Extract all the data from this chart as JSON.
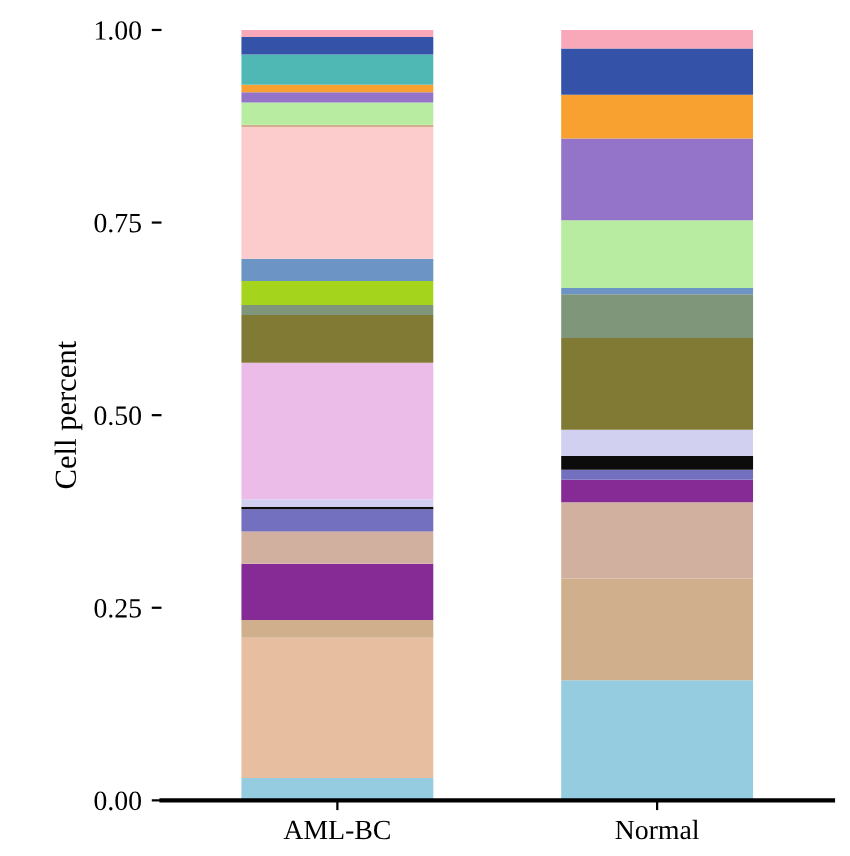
{
  "chart_data": {
    "type": "bar",
    "stacked": true,
    "ylabel": "Cell percent",
    "categories": [
      "AML-BC",
      "Normal"
    ],
    "ylim": [
      0,
      1
    ],
    "yticks": [
      {
        "value": 0,
        "label": "0.00"
      },
      {
        "value": 0.25,
        "label": "0.25"
      },
      {
        "value": 0.5,
        "label": "0.50"
      },
      {
        "value": 0.75,
        "label": "0.75"
      },
      {
        "value": 1,
        "label": "1.00"
      }
    ],
    "grid": false,
    "legend": false,
    "series": [
      {
        "color": "#96cce0",
        "values": [
          0.029,
          0.156
        ]
      },
      {
        "color": "#e8bea0",
        "values": [
          0.182,
          0
        ]
      },
      {
        "color": "#d0b08c",
        "values": [
          0.023,
          0.132
        ]
      },
      {
        "color": "#862a96",
        "values": [
          0.073,
          0
        ]
      },
      {
        "color": "#d2b0a0",
        "values": [
          0.042,
          0.099
        ]
      },
      {
        "color": "#862a96",
        "values": [
          0,
          0.029
        ]
      },
      {
        "color": "#7470c0",
        "values": [
          0.029,
          0.013
        ]
      },
      {
        "color": "#0c0c0c",
        "values": [
          0.003,
          0.018
        ]
      },
      {
        "color": "#d2d0f0",
        "values": [
          0.01,
          0.034
        ]
      },
      {
        "color": "#ecbce8",
        "values": [
          0.177,
          0
        ]
      },
      {
        "color": "#807a34",
        "values": [
          0.062,
          0.119
        ]
      },
      {
        "color": "#80967a",
        "values": [
          0.013,
          0.057
        ]
      },
      {
        "color": "#a4d41c",
        "values": [
          0.031,
          0
        ]
      },
      {
        "color": "#6c94c4",
        "values": [
          0.029,
          0.008
        ]
      },
      {
        "color": "#fccccc",
        "values": [
          0.171,
          0
        ]
      },
      {
        "color": "#d0b08c",
        "values": [
          0.003,
          0
        ]
      },
      {
        "color": "#b8eca0",
        "values": [
          0.029,
          0.088
        ]
      },
      {
        "color": "#9474c8",
        "values": [
          0.013,
          0.106
        ]
      },
      {
        "color": "#f8a030",
        "values": [
          0.01,
          0.057
        ]
      },
      {
        "color": "#50b8b4",
        "values": [
          0.039,
          0
        ]
      },
      {
        "color": "#3452a8",
        "values": [
          0.023,
          0.06
        ]
      },
      {
        "color": "#f8a8b8",
        "values": [
          0.009,
          0.024
        ]
      }
    ]
  }
}
